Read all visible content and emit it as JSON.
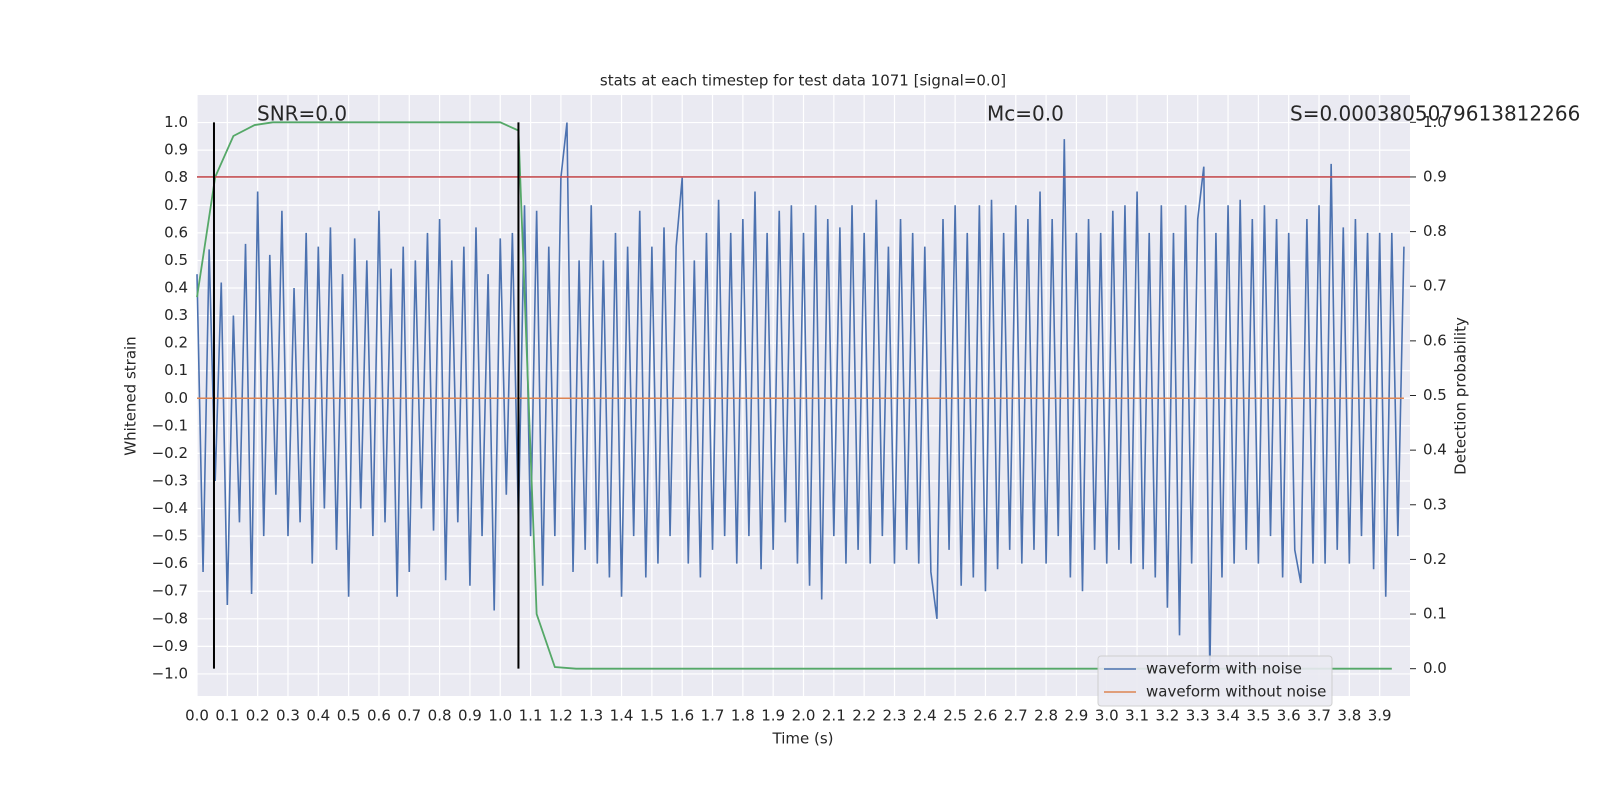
{
  "chart_data": {
    "type": "line",
    "title": "stats at each timestep for test data 1071 [signal=0.0]",
    "x_label": "Time (s)",
    "y_label": "Whitened strain",
    "y2_label": "Detection probability",
    "xlim": [
      0,
      4.0
    ],
    "ylim": [
      -1.08,
      1.1
    ],
    "y2lim": [
      -0.05,
      1.05
    ],
    "grid": true,
    "legend": "lower right",
    "xticks": [
      {
        "value": 0,
        "label": "0.0"
      },
      0.1,
      0.2,
      0.3,
      0.4,
      0.5,
      0.6,
      0.7,
      0.8,
      0.9,
      {
        "value": 1,
        "label": "1.0"
      },
      1.1,
      1.2,
      1.3,
      1.4,
      1.5,
      1.6,
      1.7,
      1.8,
      1.9,
      {
        "value": 2,
        "label": "2.0"
      },
      2.1,
      2.2,
      2.3,
      2.4,
      2.5,
      2.6,
      2.7,
      2.8,
      2.9,
      {
        "value": 3,
        "label": "3.0"
      },
      3.1,
      3.2,
      3.3,
      3.4,
      3.5,
      3.6,
      3.7,
      3.8,
      3.9
    ],
    "yticks": [
      {
        "value": -1,
        "label": "−1.0"
      },
      {
        "value": -0.9,
        "label": "−0.9"
      },
      {
        "value": -0.8,
        "label": "−0.8"
      },
      {
        "value": -0.7,
        "label": "−0.7"
      },
      {
        "value": -0.6,
        "label": "−0.6"
      },
      {
        "value": -0.5,
        "label": "−0.5"
      },
      {
        "value": -0.4,
        "label": "−0.4"
      },
      {
        "value": -0.3,
        "label": "−0.3"
      },
      {
        "value": -0.2,
        "label": "−0.2"
      },
      {
        "value": -0.1,
        "label": "−0.1"
      },
      {
        "value": 0,
        "label": "0.0"
      },
      0.1,
      0.2,
      0.3,
      0.4,
      0.5,
      0.6,
      0.7,
      0.8,
      0.9,
      {
        "value": 1,
        "label": "1.0"
      }
    ],
    "y2ticks": [
      {
        "value": 0,
        "label": "0.0"
      },
      0.1,
      0.2,
      0.3,
      0.4,
      0.5,
      0.6,
      0.7,
      0.8,
      0.9,
      {
        "value": 1,
        "label": "1.0"
      }
    ],
    "annotations": [
      "SNR=0.0",
      "Mc=0.0",
      "S=0.0003805079613812266"
    ],
    "series": [
      {
        "name": "waveform with noise",
        "color": "#4c72b0",
        "x": [
          0,
          0.02,
          0.04,
          0.06,
          0.08,
          0.1,
          0.12,
          0.14,
          0.16,
          0.18,
          0.2,
          0.22,
          0.24,
          0.26,
          0.28,
          0.3,
          0.32,
          0.34,
          0.36,
          0.38,
          0.4,
          0.42,
          0.44,
          0.46,
          0.48,
          0.5,
          0.52,
          0.54,
          0.56,
          0.58,
          0.6,
          0.62,
          0.64,
          0.66,
          0.68,
          0.7,
          0.72,
          0.74,
          0.76,
          0.78,
          0.8,
          0.82,
          0.84,
          0.86,
          0.88,
          0.9,
          0.92,
          0.94,
          0.96,
          0.98,
          1,
          1.02,
          1.04,
          1.06,
          1.08,
          1.1,
          1.12,
          1.14,
          1.16,
          1.18,
          1.2,
          1.22,
          1.24,
          1.26,
          1.28,
          1.3,
          1.32,
          1.34,
          1.36,
          1.38,
          1.4,
          1.42,
          1.44,
          1.46,
          1.48,
          1.5,
          1.52,
          1.54,
          1.56,
          1.58,
          1.6,
          1.62,
          1.64,
          1.66,
          1.68,
          1.7,
          1.72,
          1.74,
          1.76,
          1.78,
          1.8,
          1.82,
          1.84,
          1.86,
          1.88,
          1.9,
          1.92,
          1.94,
          1.96,
          1.98,
          2,
          2.02,
          2.04,
          2.06,
          2.08,
          2.1,
          2.12,
          2.14,
          2.16,
          2.18,
          2.2,
          2.22,
          2.24,
          2.26,
          2.28,
          2.3,
          2.32,
          2.34,
          2.36,
          2.38,
          2.4,
          2.42,
          2.44,
          2.46,
          2.48,
          2.5,
          2.52,
          2.54,
          2.56,
          2.58,
          2.6,
          2.62,
          2.64,
          2.66,
          2.68,
          2.7,
          2.72,
          2.74,
          2.76,
          2.78,
          2.8,
          2.82,
          2.84,
          2.86,
          2.88,
          2.9,
          2.92,
          2.94,
          2.96,
          2.98,
          3,
          3.02,
          3.04,
          3.06,
          3.08,
          3.1,
          3.12,
          3.14,
          3.16,
          3.18,
          3.2,
          3.22,
          3.24,
          3.26,
          3.28,
          3.3,
          3.32,
          3.34,
          3.36,
          3.38,
          3.4,
          3.42,
          3.44,
          3.46,
          3.48,
          3.5,
          3.52,
          3.54,
          3.56,
          3.58,
          3.6,
          3.62,
          3.64,
          3.66,
          3.68,
          3.7,
          3.72,
          3.74,
          3.76,
          3.78,
          3.8,
          3.82,
          3.84,
          3.86,
          3.88,
          3.9,
          3.92,
          3.94,
          3.96,
          3.98
        ],
        "values": [
          0.45,
          -0.63,
          0.54,
          -0.3,
          0.42,
          -0.75,
          0.3,
          -0.45,
          0.56,
          -0.71,
          0.75,
          -0.5,
          0.52,
          -0.35,
          0.68,
          -0.5,
          0.4,
          -0.45,
          0.6,
          -0.6,
          0.55,
          -0.4,
          0.62,
          -0.55,
          0.45,
          -0.72,
          0.58,
          -0.4,
          0.5,
          -0.5,
          0.68,
          -0.45,
          0.47,
          -0.72,
          0.55,
          -0.63,
          0.5,
          -0.4,
          0.6,
          -0.48,
          0.65,
          -0.66,
          0.5,
          -0.45,
          0.55,
          -0.68,
          0.62,
          -0.5,
          0.45,
          -0.77,
          0.58,
          -0.35,
          0.6,
          -0.45,
          0.7,
          -0.5,
          0.68,
          -0.68,
          0.55,
          -0.5,
          0.8,
          1.0,
          -0.63,
          0.5,
          -0.55,
          0.7,
          -0.6,
          0.5,
          -0.65,
          0.6,
          -0.72,
          0.55,
          -0.5,
          0.68,
          -0.65,
          0.55,
          -0.6,
          0.62,
          -0.5,
          0.55,
          0.8,
          -0.6,
          0.5,
          -0.65,
          0.6,
          -0.55,
          0.72,
          -0.5,
          0.6,
          -0.6,
          0.65,
          -0.5,
          0.75,
          -0.62,
          0.6,
          -0.55,
          0.68,
          -0.45,
          0.7,
          -0.6,
          0.6,
          -0.68,
          0.7,
          -0.73,
          0.65,
          -0.5,
          0.62,
          -0.6,
          0.7,
          -0.55,
          0.6,
          -0.6,
          0.72,
          -0.5,
          0.55,
          -0.6,
          0.65,
          -0.55,
          0.6,
          -0.6,
          0.55,
          -0.63,
          -0.8,
          0.65,
          -0.55,
          0.7,
          -0.68,
          0.6,
          -0.65,
          0.7,
          -0.7,
          0.72,
          -0.62,
          0.6,
          -0.55,
          0.7,
          -0.6,
          0.65,
          -0.55,
          0.75,
          -0.6,
          0.65,
          -0.5,
          0.94,
          -0.65,
          0.6,
          -0.7,
          0.65,
          -0.55,
          0.6,
          -0.6,
          0.68,
          -0.55,
          0.7,
          -0.6,
          0.75,
          -0.62,
          0.6,
          -0.65,
          0.7,
          -0.76,
          0.6,
          -0.86,
          0.7,
          -0.6,
          0.65,
          0.84,
          -1.0,
          0.6,
          -0.65,
          0.7,
          -0.6,
          0.72,
          -0.55,
          0.65,
          -0.6,
          0.7,
          -0.5,
          0.65,
          -0.65,
          0.6,
          -0.55,
          -0.67,
          0.65,
          -0.6,
          0.7,
          -0.6,
          0.85,
          -0.55,
          0.62,
          -0.6,
          0.65,
          -0.5,
          0.6,
          -0.62,
          0.6,
          -0.72,
          0.6,
          -0.5,
          0.55
        ]
      },
      {
        "name": "waveform without noise",
        "color": "#dd8452",
        "x": [
          0,
          3.98
        ],
        "values": [
          0,
          0
        ]
      }
    ],
    "probability": {
      "color": "#55a868",
      "axis": "y2",
      "x": [
        0,
        0.06,
        0.12,
        0.19,
        0.25,
        1.0,
        1.06,
        1.12,
        1.18,
        1.25,
        3.94
      ],
      "values": [
        0.68,
        0.9,
        0.975,
        0.995,
        1.0,
        1.0,
        0.985,
        0.1,
        0.003,
        0.0,
        0.0
      ]
    },
    "threshold": {
      "color": "#c44e52",
      "axis": "y2",
      "value": 0.9
    },
    "markers": {
      "color": "#000000",
      "x": [
        0.056,
        1.06
      ]
    }
  }
}
